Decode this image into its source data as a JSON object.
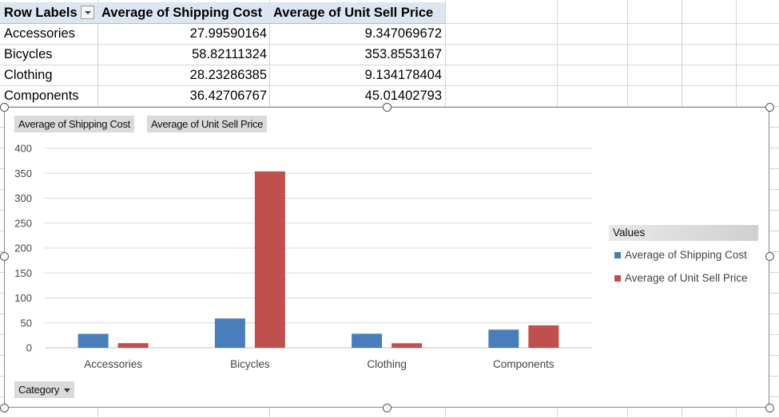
{
  "pivot_table": {
    "headers": [
      "Row Labels",
      "Average of Shipping Cost",
      "Average of Unit Sell Price"
    ],
    "rows": [
      [
        "Accessories",
        "27.99590164",
        "9.347069672"
      ],
      [
        "Bicycles",
        "58.82111324",
        "353.8553167"
      ],
      [
        "Clothing",
        "28.23286385",
        "9.134178404"
      ],
      [
        "Components",
        "36.42706767",
        "45.01402793"
      ]
    ]
  },
  "chart_buttons": {
    "value_field_1": "Average of Shipping Cost",
    "value_field_2": "Average of Unit Sell Price",
    "axis_field": "Category"
  },
  "legend": {
    "title": "Values"
  },
  "colors": {
    "series_1": "#4a7ebb",
    "series_2": "#c0504d",
    "header_fill": "#dce6f1"
  },
  "chart_data": {
    "type": "bar",
    "categories": [
      "Accessories",
      "Bicycles",
      "Clothing",
      "Components"
    ],
    "series": [
      {
        "name": "Average of Shipping Cost",
        "values": [
          27.99590164,
          58.82111324,
          28.23286385,
          36.42706767
        ]
      },
      {
        "name": "Average of Unit Sell Price",
        "values": [
          9.347069672,
          353.8553167,
          9.134178404,
          45.01402793
        ]
      }
    ],
    "title": "",
    "xlabel": "",
    "ylabel": "",
    "ylim": [
      0,
      400
    ],
    "yticks": [
      0,
      50,
      100,
      150,
      200,
      250,
      300,
      350,
      400
    ],
    "grid": true,
    "legend_position": "right"
  }
}
